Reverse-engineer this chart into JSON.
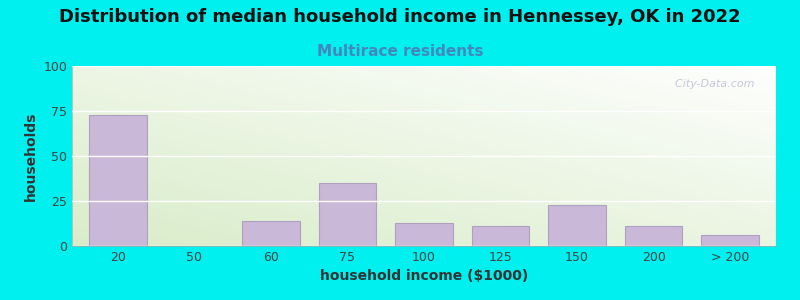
{
  "title": "Distribution of median household income in Hennessey, OK in 2022",
  "subtitle": "Multirace residents",
  "xlabel": "household income ($1000)",
  "ylabel": "households",
  "background_color": "#00EFEF",
  "bar_color": "#c9b8d8",
  "bar_edge_color": "#b0a0c0",
  "yticks": [
    0,
    25,
    50,
    75,
    100
  ],
  "ylim": [
    0,
    100
  ],
  "categories": [
    "20",
    "50",
    "60",
    "75",
    "100",
    "125",
    "150",
    "200",
    "> 200"
  ],
  "values": [
    73,
    0,
    14,
    35,
    13,
    11,
    23,
    11,
    6
  ],
  "title_fontsize": 13,
  "subtitle_fontsize": 11,
  "subtitle_color": "#4488bb",
  "axis_label_fontsize": 10,
  "tick_fontsize": 9,
  "watermark": "  City-Data.com"
}
